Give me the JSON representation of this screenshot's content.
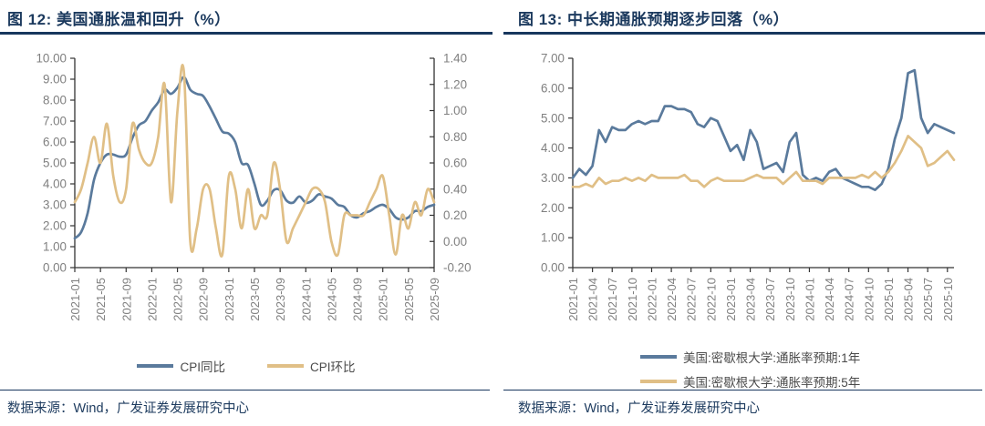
{
  "panels": [
    {
      "title": "图 12:  美国通胀温和回升（%）",
      "source": "数据来源：Wind，广发证券发展研究中心",
      "legend": [
        {
          "label": "CPI同比",
          "color": "#5A7A9C"
        },
        {
          "label": "CPI环比",
          "color": "#E0BF86"
        }
      ]
    },
    {
      "title": "图 13:  中长期通胀预期逐步回落（%）",
      "source": "数据来源：Wind，广发证券发展研究中心",
      "legend": [
        {
          "label": "美国:密歇根大学:通胀率预期:1年",
          "color": "#5A7A9C"
        },
        {
          "label": "美国:密歇根大学:通胀率预期:5年",
          "color": "#E0BF86"
        }
      ]
    }
  ],
  "colors": {
    "axis_line": "#333333",
    "axis_label": "#808080",
    "title_navy": "#1c3a5e",
    "rule_navy": "#17365d",
    "series_blue": "#5A7A9C",
    "series_tan": "#E0BF86"
  },
  "chart_data": [
    {
      "type": "line",
      "title": "图 12: 美国通胀温和回升（%）",
      "grid": false,
      "legend_position": "bottom",
      "n_points": 57,
      "x_tick_labels": [
        "2021-01",
        "2021-05",
        "2021-09",
        "2022-01",
        "2022-05",
        "2022-09",
        "2023-01",
        "2023-05",
        "2023-09",
        "2024-01",
        "2024-05",
        "2024-09",
        "2025-01",
        "2025-05",
        "2025-09"
      ],
      "x_tick_indices": [
        0,
        4,
        8,
        12,
        16,
        20,
        24,
        28,
        32,
        36,
        40,
        44,
        48,
        52,
        56
      ],
      "ylim": [
        0,
        10
      ],
      "y_step": 1,
      "y2lim": [
        -0.2,
        1.4
      ],
      "y2_step": 0.2,
      "series": [
        {
          "name": "CPI同比",
          "axis": "y1",
          "color": "#5A7A9C",
          "smooth": true,
          "values": [
            1.4,
            1.7,
            2.6,
            4.2,
            5.0,
            5.4,
            5.4,
            5.3,
            5.4,
            6.2,
            6.8,
            7.0,
            7.5,
            7.9,
            8.5,
            8.3,
            8.6,
            9.1,
            8.5,
            8.3,
            8.2,
            7.7,
            7.1,
            6.5,
            6.4,
            6.0,
            5.0,
            4.9,
            4.0,
            3.0,
            3.2,
            3.7,
            3.7,
            3.2,
            3.1,
            3.4,
            3.1,
            3.2,
            3.5,
            3.4,
            3.3,
            3.0,
            2.9,
            2.5,
            2.4,
            2.6,
            2.7,
            2.9,
            3.0,
            2.8,
            2.4,
            2.3,
            2.4,
            2.7,
            2.7,
            2.9,
            3.0
          ]
        },
        {
          "name": "CPI环比",
          "axis": "y2",
          "color": "#E0BF86",
          "smooth": true,
          "values": [
            0.3,
            0.4,
            0.6,
            0.8,
            0.6,
            0.9,
            0.5,
            0.3,
            0.4,
            0.9,
            0.7,
            0.6,
            0.6,
            0.8,
            1.2,
            0.3,
            1.0,
            1.3,
            0.0,
            0.1,
            0.4,
            0.4,
            0.1,
            -0.1,
            0.5,
            0.4,
            0.1,
            0.4,
            0.1,
            0.2,
            0.2,
            0.6,
            0.4,
            0.0,
            0.1,
            0.2,
            0.3,
            0.4,
            0.4,
            0.3,
            0.0,
            -0.1,
            0.2,
            0.2,
            0.2,
            0.2,
            0.3,
            0.4,
            0.5,
            0.2,
            -0.1,
            0.2,
            0.1,
            0.3,
            0.2,
            0.4,
            0.3
          ]
        }
      ]
    },
    {
      "type": "line",
      "title": "图 13: 中长期通胀预期逐步回落（%）",
      "grid": false,
      "legend_position": "bottom",
      "n_points": 59,
      "x_tick_labels": [
        "2021-01",
        "2021-04",
        "2021-07",
        "2021-10",
        "2022-01",
        "2022-04",
        "2022-07",
        "2022-10",
        "2023-01",
        "2023-04",
        "2023-07",
        "2023-10",
        "2024-01",
        "2024-04",
        "2024-07",
        "2024-10",
        "2025-01",
        "2025-04",
        "2025-07",
        "2025-10"
      ],
      "x_tick_indices": [
        0,
        3,
        6,
        9,
        12,
        15,
        18,
        21,
        24,
        27,
        30,
        33,
        36,
        39,
        42,
        45,
        48,
        51,
        54,
        57
      ],
      "ylim": [
        0,
        7
      ],
      "y_step": 1,
      "series": [
        {
          "name": "美国:密歇根大学:通胀率预期:1年",
          "axis": "y1",
          "color": "#5A7A9C",
          "smooth": false,
          "values": [
            3.0,
            3.3,
            3.1,
            3.4,
            4.6,
            4.2,
            4.7,
            4.6,
            4.6,
            4.8,
            4.9,
            4.8,
            4.9,
            4.9,
            5.4,
            5.4,
            5.3,
            5.3,
            5.2,
            4.8,
            4.7,
            5.0,
            4.9,
            4.4,
            3.9,
            4.1,
            3.6,
            4.6,
            4.2,
            3.3,
            3.4,
            3.5,
            3.2,
            4.2,
            4.5,
            3.1,
            2.9,
            3.0,
            2.9,
            3.2,
            3.3,
            3.0,
            2.9,
            2.8,
            2.7,
            2.7,
            2.6,
            2.8,
            3.3,
            4.3,
            5.0,
            6.5,
            6.6,
            5.0,
            4.5,
            4.8,
            4.7,
            4.6,
            4.5
          ]
        },
        {
          "name": "美国:密歇根大学:通胀率预期:5年",
          "axis": "y1",
          "color": "#E0BF86",
          "smooth": false,
          "values": [
            2.7,
            2.7,
            2.8,
            2.7,
            3.0,
            2.8,
            2.9,
            2.9,
            3.0,
            2.9,
            3.0,
            2.9,
            3.1,
            3.0,
            3.0,
            3.0,
            3.0,
            3.1,
            2.9,
            2.9,
            2.7,
            2.9,
            3.0,
            2.9,
            2.9,
            2.9,
            2.9,
            3.0,
            3.1,
            3.0,
            3.0,
            3.0,
            2.8,
            3.0,
            3.2,
            2.9,
            2.9,
            2.9,
            2.8,
            3.0,
            3.0,
            3.0,
            3.0,
            3.0,
            3.1,
            3.0,
            3.2,
            3.0,
            3.2,
            3.5,
            3.9,
            4.4,
            4.2,
            4.0,
            3.4,
            3.5,
            3.7,
            3.9,
            3.6
          ]
        }
      ]
    }
  ]
}
